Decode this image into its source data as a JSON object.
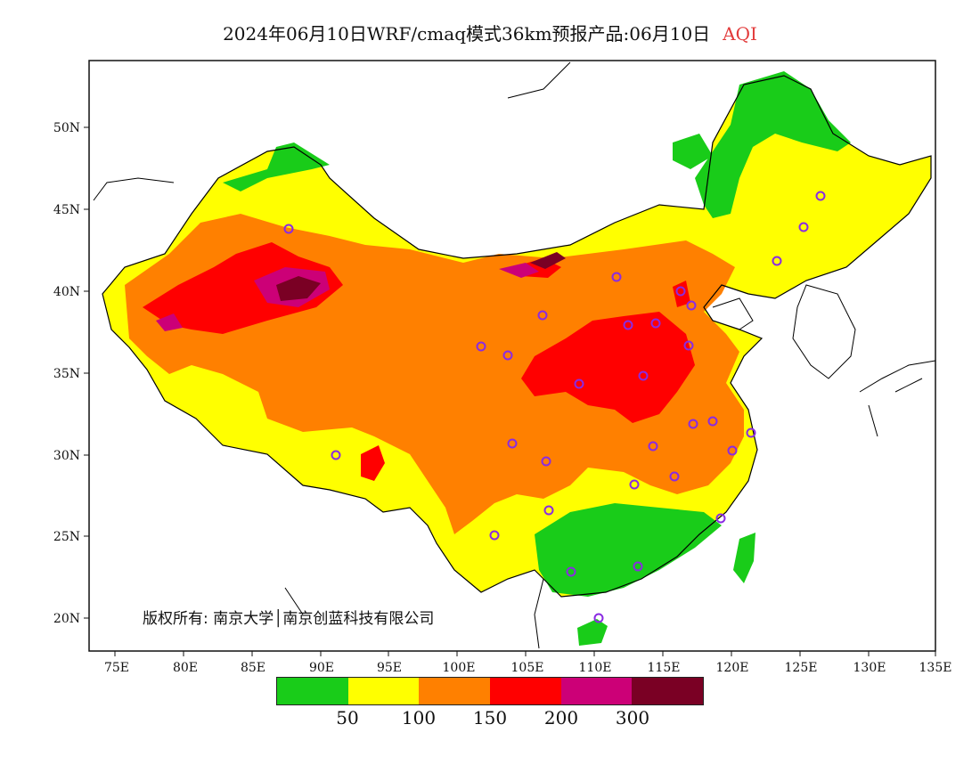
{
  "title": {
    "text": "2024年06月10日WRF/cmaq模式36km预报产品:06月10日",
    "metric": "AQI"
  },
  "axes": {
    "lat_labels": [
      "20N",
      "25N",
      "30N",
      "35N",
      "40N",
      "45N",
      "50N"
    ],
    "lon_labels": [
      "75E",
      "80E",
      "85E",
      "90E",
      "95E",
      "100E",
      "105E",
      "110E",
      "115E",
      "120E",
      "125E",
      "130E",
      "135E"
    ]
  },
  "legend": {
    "colors": [
      "#19cc19",
      "#ffff00",
      "#ff8000",
      "#ff0000",
      "#cc0077",
      "#7a0024"
    ],
    "labels": [
      "50",
      "100",
      "150",
      "200",
      "300"
    ]
  },
  "copyright": "版权所有: 南京大学│南京创蓝科技有限公司",
  "map_colors": {
    "good": "#19cc19",
    "moderate": "#ffff00",
    "usg": "#ff8000",
    "unhealthy": "#ff0000",
    "very_unhealthy": "#cc0077",
    "hazardous": "#7a0024",
    "city_marker": "#8a2be2"
  }
}
